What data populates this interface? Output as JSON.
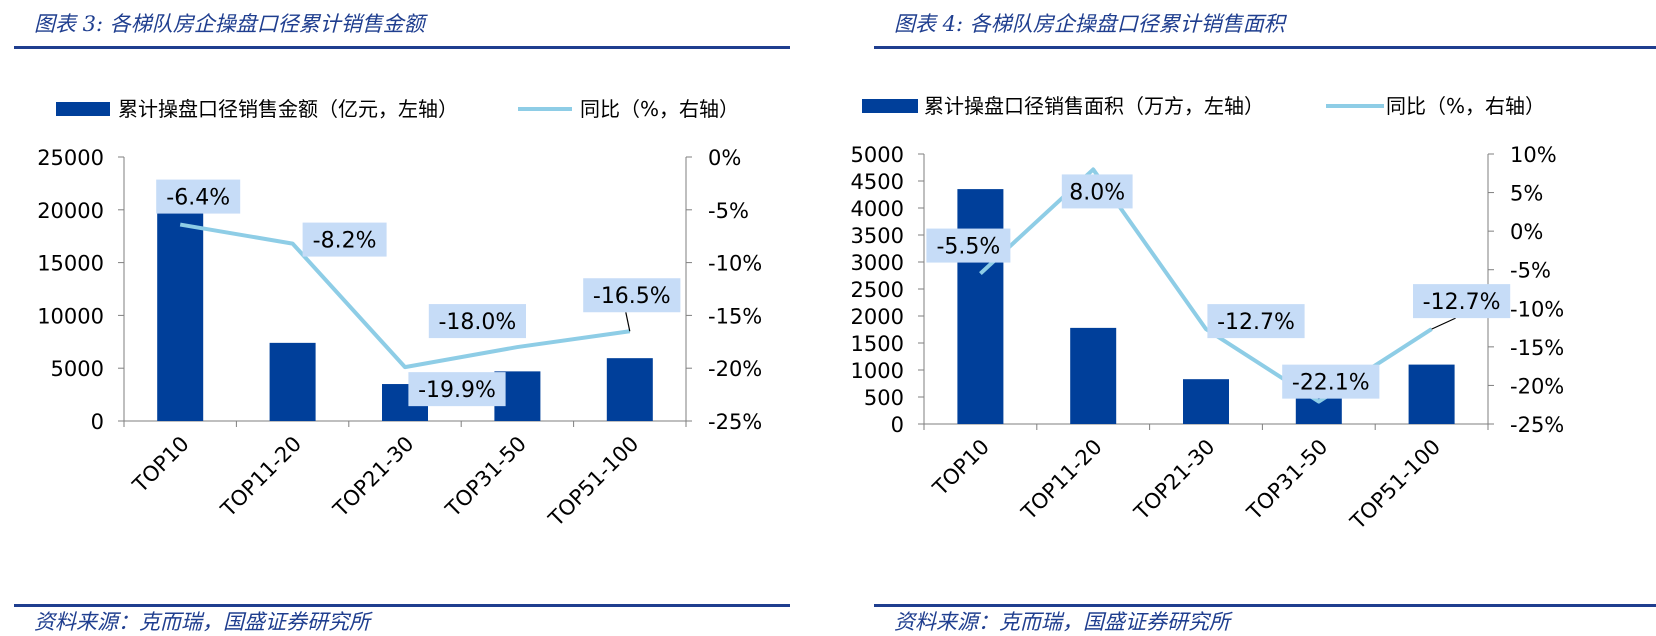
{
  "colors": {
    "bar": "#003f9a",
    "line": "#8ecde6",
    "label_bg": "#c6dcf7",
    "rule": "#1f3e8f",
    "axis": "#7f7f7f"
  },
  "chart_data": [
    {
      "type": "bar",
      "title": "图表 3:  各梯队房企操盘口径累计销售金额",
      "source": "资料来源：克而瑞，国盛证券研究所",
      "categories": [
        "TOP10",
        "TOP11-20",
        "TOP21-30",
        "TOP31-50",
        "TOP51-100"
      ],
      "left_axis": {
        "min": 0,
        "max": 25000,
        "step": 5000,
        "ticks": [
          "0",
          "5000",
          "10000",
          "15000",
          "20000",
          "25000"
        ]
      },
      "right_axis": {
        "min": -25,
        "max": 0,
        "step": 5,
        "ticks": [
          "-25%",
          "-20%",
          "-15%",
          "-10%",
          "-5%",
          "0%"
        ]
      },
      "series": [
        {
          "name": "累计操盘口径销售金额（亿元，左轴）",
          "type": "bar",
          "axis": "left",
          "values": [
            19800,
            7400,
            3500,
            4700,
            5950
          ]
        },
        {
          "name": "同比（%，右轴）",
          "type": "line",
          "axis": "right",
          "values": [
            -6.4,
            -8.2,
            -19.9,
            -18.0,
            -16.5
          ],
          "labels": [
            "-6.4%",
            "-8.2%",
            "-19.9%",
            "-18.0%",
            "-16.5%"
          ]
        }
      ]
    },
    {
      "type": "bar",
      "title": "图表 4:  各梯队房企操盘口径累计销售面积",
      "source": "资料来源：克而瑞，国盛证券研究所",
      "categories": [
        "TOP10",
        "TOP11-20",
        "TOP21-30",
        "TOP31-50",
        "TOP51-100"
      ],
      "left_axis": {
        "min": 0,
        "max": 5000,
        "step": 500,
        "ticks": [
          "0",
          "500",
          "1000",
          "1500",
          "2000",
          "2500",
          "3000",
          "3500",
          "4000",
          "4500",
          "5000"
        ]
      },
      "right_axis": {
        "min": -25,
        "max": 10,
        "step": 5,
        "ticks": [
          "-25%",
          "-20%",
          "-15%",
          "-10%",
          "-5%",
          "0%",
          "5%",
          "10%"
        ]
      },
      "series": [
        {
          "name": "累计操盘口径销售面积（万方，左轴）",
          "type": "bar",
          "axis": "left",
          "values": [
            4350,
            1780,
            830,
            580,
            1100
          ]
        },
        {
          "name": "同比（%，右轴）",
          "type": "line",
          "axis": "right",
          "values": [
            -5.5,
            8.0,
            -12.7,
            -22.1,
            -12.7
          ],
          "labels": [
            "-5.5%",
            "8.0%",
            "-12.7%",
            "-22.1%",
            "-12.7%"
          ]
        }
      ]
    }
  ]
}
